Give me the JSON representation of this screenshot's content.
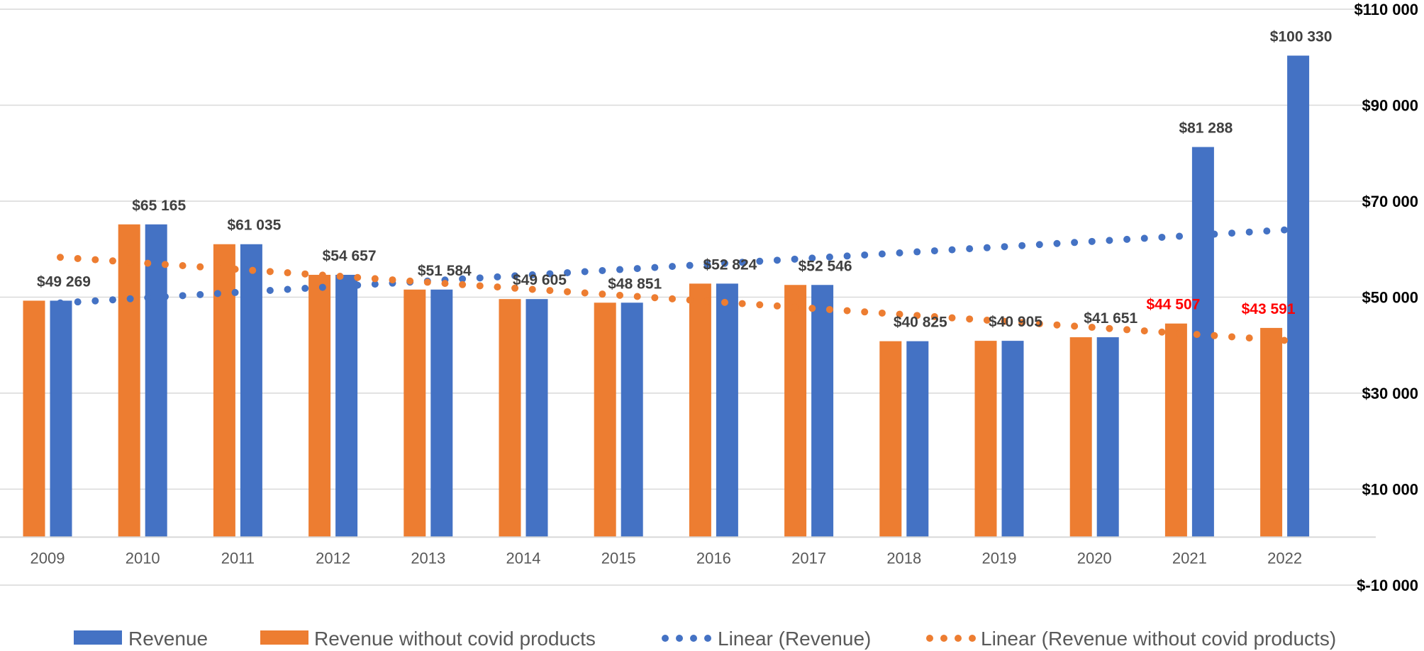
{
  "chart_data": {
    "type": "bar",
    "categories": [
      "2009",
      "2010",
      "2011",
      "2012",
      "2013",
      "2014",
      "2015",
      "2016",
      "2017",
      "2018",
      "2019",
      "2020",
      "2021",
      "2022"
    ],
    "series": [
      {
        "name": "Revenue",
        "color": "#4472C4",
        "values": [
          49269,
          65165,
          61035,
          54657,
          51584,
          49605,
          48851,
          52824,
          52546,
          40825,
          40905,
          41651,
          81288,
          100330
        ]
      },
      {
        "name": "Revenue without covid products",
        "color": "#ED7D31",
        "values": [
          49269,
          65165,
          61035,
          54657,
          51584,
          49605,
          48851,
          52824,
          52546,
          40825,
          40905,
          41651,
          44507,
          43591
        ]
      }
    ],
    "trendlines": [
      {
        "name": "Linear (Revenue)",
        "color": "#4472C4",
        "start": 48800,
        "end": 64000
      },
      {
        "name": "Linear (Revenue without covid products)",
        "color": "#ED7D31",
        "start": 58300,
        "end": 41000
      }
    ],
    "data_labels": [
      "$49 269",
      "$65 165",
      "$61 035",
      "$54 657",
      "$51 584",
      "$49 605",
      "$48 851",
      "$52 824",
      "$52 546",
      "$40 825",
      "$40 905",
      "$41 651",
      "$81 288",
      "$100 330"
    ],
    "extra_labels": [
      {
        "category": "2021",
        "text": "$44 507",
        "color": "#FF0000"
      },
      {
        "category": "2022",
        "text": "$43 591",
        "color": "#FF0000"
      }
    ],
    "y_ticks": [
      -10000,
      10000,
      30000,
      50000,
      70000,
      90000,
      110000
    ],
    "y_tick_labels": [
      "$-10 000",
      "$10 000",
      "$30 000",
      "$50 000",
      "$70 000",
      "$90 000",
      "$110 000"
    ],
    "ylim": [
      -10000,
      110000
    ],
    "axis_position": "right",
    "grid": true,
    "legend_position": "bottom",
    "title": "",
    "xlabel": "",
    "ylabel": ""
  }
}
